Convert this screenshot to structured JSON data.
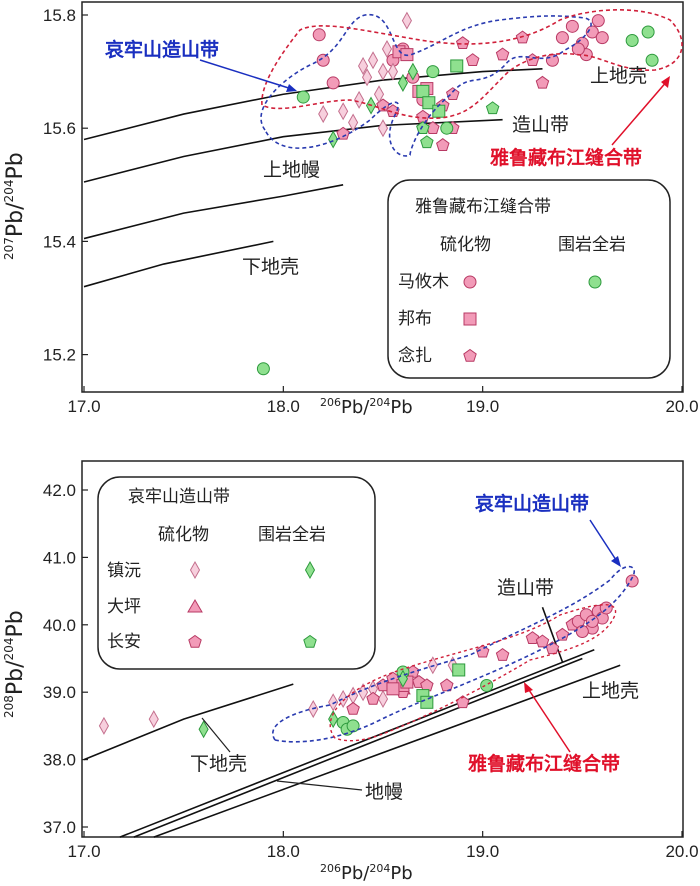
{
  "chart_data": [
    {
      "type": "scatter",
      "id": "top",
      "xlabel": "206Pb/204Pb",
      "ylabel": "207Pb/204Pb",
      "xlim": [
        17.0,
        20.0
      ],
      "ylim": [
        15.12,
        15.83
      ],
      "xticks": [
        "17.0",
        "18.0",
        "19.0",
        "20.0"
      ],
      "yticks": [
        "15.2",
        "15.4",
        "15.6",
        "15.8"
      ],
      "curves": [
        {
          "name": "上地壳",
          "points": [
            [
              17.0,
              15.58
            ],
            [
              17.5,
              15.625
            ],
            [
              18.0,
              15.66
            ],
            [
              18.5,
              15.685
            ],
            [
              19.0,
              15.7
            ],
            [
              19.3,
              15.705
            ]
          ]
        },
        {
          "name": "造山带",
          "points": [
            [
              17.0,
              15.505
            ],
            [
              17.5,
              15.55
            ],
            [
              18.0,
              15.585
            ],
            [
              18.5,
              15.605
            ],
            [
              19.1,
              15.615
            ]
          ]
        },
        {
          "name": "上地幔",
          "points": [
            [
              17.0,
              15.405
            ],
            [
              17.5,
              15.45
            ],
            [
              18.0,
              15.48
            ],
            [
              18.3,
              15.5
            ]
          ]
        },
        {
          "name": "下地壳",
          "points": [
            [
              17.0,
              15.32
            ],
            [
              17.4,
              15.36
            ],
            [
              17.95,
              15.4
            ]
          ]
        }
      ],
      "annotations": {
        "orogen_belt": "哀牢山造山带",
        "suture": "雅鲁藏布江缝合带"
      },
      "legend": {
        "title": "雅鲁藏布江缝合带",
        "col1": "硫化物",
        "col2": "围岩全岩",
        "rows": [
          "马攸木",
          "邦布",
          "念扎"
        ],
        "placement": "bottom-right"
      },
      "series": [
        {
          "name": "马攸木 硫化物",
          "marker": "circle",
          "color": "pink",
          "points": [
            [
              18.18,
              15.765
            ],
            [
              18.2,
              15.72
            ],
            [
              18.25,
              15.68
            ],
            [
              18.55,
              15.72
            ],
            [
              18.6,
              15.74
            ],
            [
              18.65,
              15.69
            ],
            [
              18.7,
              15.65
            ],
            [
              19.35,
              15.72
            ],
            [
              19.4,
              15.76
            ],
            [
              19.45,
              15.78
            ],
            [
              19.5,
              15.75
            ],
            [
              19.52,
              15.73
            ],
            [
              19.55,
              15.77
            ],
            [
              19.58,
              15.79
            ],
            [
              19.48,
              15.74
            ],
            [
              19.6,
              15.76
            ]
          ]
        },
        {
          "name": "邦布 硫化物",
          "marker": "square",
          "color": "pink",
          "points": [
            [
              18.58,
              15.735
            ],
            [
              18.62,
              15.73
            ],
            [
              18.68,
              15.665
            ],
            [
              18.72,
              15.67
            ]
          ]
        },
        {
          "name": "念扎 硫化物",
          "marker": "pentagon",
          "color": "pink",
          "points": [
            [
              18.5,
              15.64
            ],
            [
              18.55,
              15.63
            ],
            [
              18.3,
              15.59
            ],
            [
              18.7,
              15.62
            ],
            [
              18.75,
              15.6
            ],
            [
              18.8,
              15.64
            ],
            [
              18.85,
              15.66
            ],
            [
              18.9,
              15.75
            ],
            [
              18.95,
              15.72
            ],
            [
              19.1,
              15.73
            ],
            [
              19.2,
              15.76
            ],
            [
              19.25,
              15.72
            ],
            [
              19.3,
              15.68
            ],
            [
              18.8,
              15.57
            ],
            [
              18.85,
              15.6
            ]
          ]
        },
        {
          "name": "马攸木 围岩全岩",
          "marker": "circle",
          "color": "green",
          "points": [
            [
              18.1,
              15.655
            ],
            [
              17.9,
              15.175
            ],
            [
              18.75,
              15.7
            ],
            [
              19.75,
              15.755
            ],
            [
              19.83,
              15.77
            ],
            [
              19.85,
              15.72
            ],
            [
              18.82,
              15.6
            ]
          ]
        },
        {
          "name": "邦布 围岩全岩",
          "marker": "square",
          "color": "green",
          "points": [
            [
              18.87,
              15.71
            ],
            [
              18.7,
              15.665
            ],
            [
              18.73,
              15.645
            ],
            [
              18.78,
              15.63
            ]
          ]
        },
        {
          "name": "念扎 围岩全岩",
          "marker": "pentagon",
          "color": "green",
          "points": [
            [
              19.05,
              15.635
            ],
            [
              18.72,
              15.575
            ],
            [
              18.7,
              15.6
            ]
          ]
        },
        {
          "name": "镇沅 硫化物",
          "marker": "diamond",
          "color": "lightpink",
          "points": [
            [
              18.62,
              15.79
            ],
            [
              18.3,
              15.63
            ],
            [
              18.35,
              15.61
            ],
            [
              18.4,
              15.71
            ],
            [
              18.45,
              15.72
            ],
            [
              18.5,
              15.7
            ],
            [
              18.52,
              15.74
            ],
            [
              18.55,
              15.7
            ],
            [
              18.48,
              15.66
            ],
            [
              18.42,
              15.69
            ],
            [
              18.38,
              15.65
            ],
            [
              18.2,
              15.625
            ],
            [
              18.5,
              15.6
            ]
          ]
        },
        {
          "name": "镇沅 围岩全岩",
          "marker": "diamond",
          "color": "green",
          "points": [
            [
              18.25,
              15.58
            ],
            [
              18.44,
              15.64
            ],
            [
              18.6,
              15.68
            ],
            [
              18.65,
              15.7
            ]
          ]
        }
      ]
    },
    {
      "type": "scatter",
      "id": "bottom",
      "xlabel": "206Pb/204Pb",
      "ylabel": "208Pb/204Pb",
      "xlim": [
        17.0,
        20.0
      ],
      "ylim": [
        36.85,
        42.4
      ],
      "xticks": [
        "17.0",
        "18.0",
        "19.0",
        "20.0"
      ],
      "yticks": [
        "37.0",
        "38.0",
        "39.0",
        "40.0",
        "41.0",
        "42.0"
      ],
      "curves": [
        {
          "name": "下地壳",
          "points": [
            [
              17.0,
              38.0
            ],
            [
              17.5,
              38.6
            ],
            [
              18.05,
              39.12
            ]
          ]
        },
        {
          "name": "地幔",
          "points": [
            [
              17.18,
              36.85
            ],
            [
              19.56,
              39.63
            ]
          ]
        },
        {
          "name": "地幔-2",
          "points": [
            [
              17.25,
              36.85
            ],
            [
              19.5,
              39.5
            ]
          ]
        },
        {
          "name": "上地壳",
          "points": [
            [
              17.35,
              36.85
            ],
            [
              19.69,
              39.4
            ]
          ]
        },
        {
          "name": "造山带",
          "points": [
            [
              19.3,
              40.26
            ],
            [
              19.4,
              39.45
            ]
          ]
        }
      ],
      "annotations": {
        "orogen_belt": "哀牢山造山带",
        "suture": "雅鲁藏布江缝合带",
        "labels": [
          "造山带",
          "上地壳",
          "下地壳",
          "地幔"
        ]
      },
      "legend": {
        "title": "哀牢山造山带",
        "col1": "硫化物",
        "col2": "围岩全岩",
        "rows": [
          "镇沅",
          "大坪",
          "长安"
        ],
        "placement": "top-left"
      },
      "series": [
        {
          "name": "镇沅 硫化物",
          "marker": "diamond",
          "color": "lightpink",
          "points": [
            [
              17.1,
              38.5
            ],
            [
              17.35,
              38.6
            ],
            [
              18.15,
              38.75
            ],
            [
              18.3,
              38.9
            ],
            [
              18.35,
              38.95
            ],
            [
              18.4,
              39.0
            ],
            [
              18.45,
              39.05
            ],
            [
              18.5,
              38.9
            ],
            [
              18.75,
              39.4
            ],
            [
              18.85,
              39.4
            ],
            [
              18.25,
              38.85
            ]
          ]
        },
        {
          "name": "大坪 硫化物",
          "marker": "triangle",
          "color": "pink",
          "points": [
            [
              18.6,
              39.05
            ]
          ]
        },
        {
          "name": "长安 硫化物",
          "marker": "pentagon",
          "color": "pink",
          "points": [
            [
              18.35,
              38.75
            ],
            [
              18.45,
              38.9
            ],
            [
              18.5,
              39.1
            ],
            [
              18.55,
              39.2
            ],
            [
              18.6,
              39.0
            ],
            [
              18.65,
              39.3
            ],
            [
              18.68,
              39.15
            ],
            [
              18.72,
              39.1
            ],
            [
              18.82,
              39.1
            ],
            [
              19.0,
              39.6
            ],
            [
              19.1,
              39.55
            ],
            [
              19.25,
              39.8
            ],
            [
              19.3,
              39.75
            ],
            [
              19.4,
              39.85
            ],
            [
              19.35,
              39.65
            ],
            [
              19.45,
              40.0
            ],
            [
              18.9,
              38.85
            ]
          ]
        },
        {
          "name": "长安 围岩",
          "marker": "circle",
          "color": "pink",
          "points": [
            [
              19.48,
              40.05
            ],
            [
              19.52,
              40.15
            ],
            [
              19.55,
              39.95
            ],
            [
              19.58,
              40.2
            ],
            [
              19.6,
              40.1
            ],
            [
              19.5,
              39.9
            ],
            [
              19.62,
              40.25
            ],
            [
              19.55,
              40.05
            ],
            [
              19.75,
              40.65
            ]
          ]
        },
        {
          "name": "邦布 硫化物",
          "marker": "square",
          "color": "pink",
          "points": [
            [
              18.6,
              39.1
            ],
            [
              18.62,
              39.15
            ],
            [
              18.55,
              39.05
            ]
          ]
        },
        {
          "name": "围岩全岩 圆",
          "marker": "circle",
          "color": "green",
          "points": [
            [
              18.3,
              38.55
            ],
            [
              18.32,
              38.45
            ],
            [
              18.35,
              38.5
            ],
            [
              19.02,
              39.1
            ],
            [
              18.6,
              39.3
            ]
          ]
        },
        {
          "name": "围岩全岩 方",
          "marker": "square",
          "color": "green",
          "points": [
            [
              18.88,
              39.33
            ],
            [
              18.7,
              38.95
            ],
            [
              18.72,
              38.85
            ]
          ]
        },
        {
          "name": "镇沅 围岩全岩",
          "marker": "diamond",
          "color": "green",
          "points": [
            [
              17.6,
              38.45
            ],
            [
              18.25,
              38.6
            ],
            [
              18.6,
              39.2
            ]
          ]
        }
      ]
    }
  ]
}
